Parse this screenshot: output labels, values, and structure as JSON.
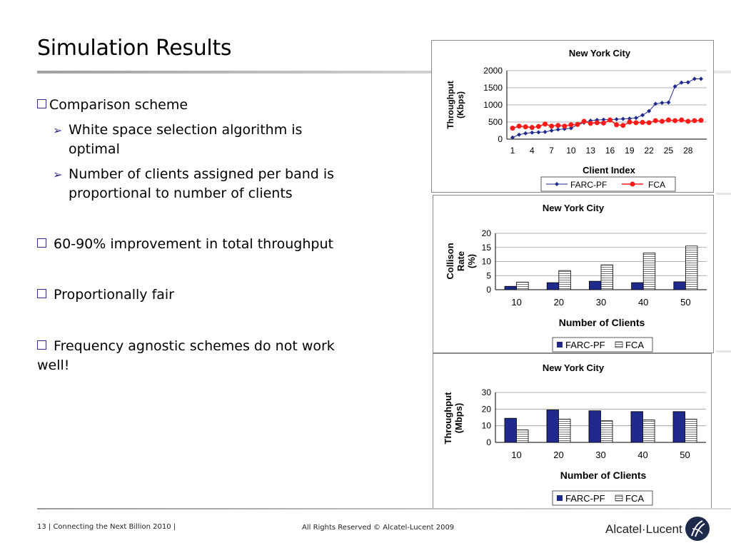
{
  "slide": {
    "title": "Simulation Results",
    "bullets": [
      {
        "text": "Comparison scheme"
      },
      {
        "text": "White space selection algorithm is optimal"
      },
      {
        "text": "Number of clients assigned per band is proportional to number of clients"
      },
      {
        "text": "60-90% improvement in total throughput"
      },
      {
        "text": "Proportionally fair"
      },
      {
        "text": "Frequency agnostic schemes do not work well!"
      }
    ],
    "sub_bullet_lines": {
      "b1_l1": "White space selection algorithm is",
      "b1_l2": "optimal",
      "b2_l1": "Number of clients assigned per band is",
      "b2_l2": "proportional to number of clients",
      "b5_l1": "Frequency agnostic schemes do not work",
      "b5_l2": "well!"
    }
  },
  "footer": {
    "left": "13 | Connecting the Next Billion 2010 |",
    "center": "All Rights Reserved © Alcatel-Lucent 2009",
    "logo_text": "Alcatel·Lucent"
  },
  "colors": {
    "farc": "#1f2a8c",
    "fca": "#ff1a1a",
    "bullet_accent": "#3b2a8c"
  },
  "chart_data": [
    {
      "type": "line",
      "title": "New York City",
      "xlabel": "Client Index",
      "ylabel": "Throughput (Kbps)",
      "ylim": [
        0,
        2000
      ],
      "yticks": [
        "0",
        "500",
        "1000",
        "1500",
        "2000"
      ],
      "xticks": [
        "1",
        "4",
        "7",
        "10",
        "13",
        "16",
        "19",
        "22",
        "25",
        "28"
      ],
      "x": [
        1,
        2,
        3,
        4,
        5,
        6,
        7,
        8,
        9,
        10,
        11,
        12,
        13,
        14,
        15,
        16,
        17,
        18,
        19,
        20,
        21,
        22,
        23,
        24,
        25,
        26,
        27,
        28,
        29,
        30
      ],
      "series": [
        {
          "name": "FARC-PF",
          "values": [
            50,
            130,
            170,
            190,
            200,
            210,
            250,
            280,
            300,
            320,
            420,
            480,
            540,
            560,
            570,
            570,
            580,
            590,
            600,
            620,
            700,
            820,
            1030,
            1060,
            1070,
            1540,
            1650,
            1660,
            1760,
            1760
          ]
        },
        {
          "name": "FCA",
          "values": [
            320,
            380,
            360,
            340,
            370,
            440,
            380,
            400,
            380,
            420,
            430,
            520,
            460,
            480,
            470,
            560,
            420,
            400,
            500,
            480,
            490,
            480,
            540,
            520,
            560,
            540,
            560,
            520,
            540,
            550
          ]
        }
      ],
      "legend": "bottom"
    },
    {
      "type": "bar",
      "title": "New York City",
      "xlabel": "Number of Clients",
      "ylabel": "Collison Rate (%)",
      "ylim": [
        0,
        20
      ],
      "yticks": [
        "0",
        "5",
        "10",
        "15",
        "20"
      ],
      "categories": [
        "10",
        "20",
        "30",
        "40",
        "50"
      ],
      "series": [
        {
          "name": "FARC-PF",
          "values": [
            1.2,
            2.5,
            3,
            2.5,
            2.8
          ]
        },
        {
          "name": "FCA",
          "values": [
            2.7,
            6.8,
            8.8,
            13,
            15.5
          ]
        }
      ],
      "legend": "bottom"
    },
    {
      "type": "bar",
      "title": "New York City",
      "xlabel": "Number of Clients",
      "ylabel": "Throughput (Mbps)",
      "ylim": [
        0,
        30
      ],
      "yticks": [
        "0",
        "10",
        "20",
        "30"
      ],
      "categories": [
        "10",
        "20",
        "30",
        "40",
        "50"
      ],
      "series": [
        {
          "name": "FARC-PF",
          "values": [
            14.5,
            19.5,
            19,
            18.5,
            18.5
          ]
        },
        {
          "name": "FCA",
          "values": [
            7.5,
            14,
            13,
            13.5,
            14
          ]
        }
      ],
      "legend": "bottom"
    }
  ]
}
